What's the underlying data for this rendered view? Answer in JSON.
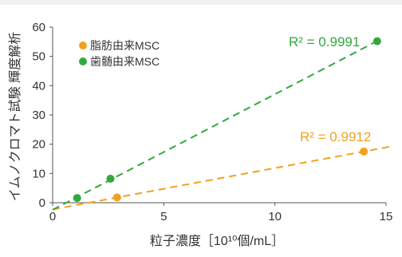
{
  "chart_data": {
    "type": "scatter",
    "xlabel": "粒子濃度［10¹⁰個/mL］",
    "ylabel": "イムノクロマト試験 輝度解析",
    "xlim": [
      0,
      15
    ],
    "ylim": [
      0,
      60
    ],
    "x_ticks": [
      0,
      5,
      10,
      15
    ],
    "y_ticks": [
      0,
      10,
      20,
      30,
      40,
      50,
      60
    ],
    "grid": false,
    "legend_position": "top-left",
    "series": [
      {
        "name": "脂肪由来MSC",
        "color": "#F2A11F",
        "points": [
          {
            "x": 2.9,
            "y": 1.8
          },
          {
            "x": 14.0,
            "y": 17.5
          }
        ],
        "trendline": {
          "type": "linear",
          "style": "dashed",
          "x_range": [
            0,
            15.2
          ]
        },
        "r2_label": "R² = 0.9912"
      },
      {
        "name": "歯髄由来MSC",
        "color": "#33A83F",
        "points": [
          {
            "x": 1.1,
            "y": 1.6
          },
          {
            "x": 2.6,
            "y": 8.2
          },
          {
            "x": 14.6,
            "y": 55.2
          }
        ],
        "trendline": {
          "type": "linear",
          "style": "dashed",
          "x_range": [
            0,
            14.7
          ]
        },
        "r2_label": "R² = 0.9991"
      }
    ]
  }
}
